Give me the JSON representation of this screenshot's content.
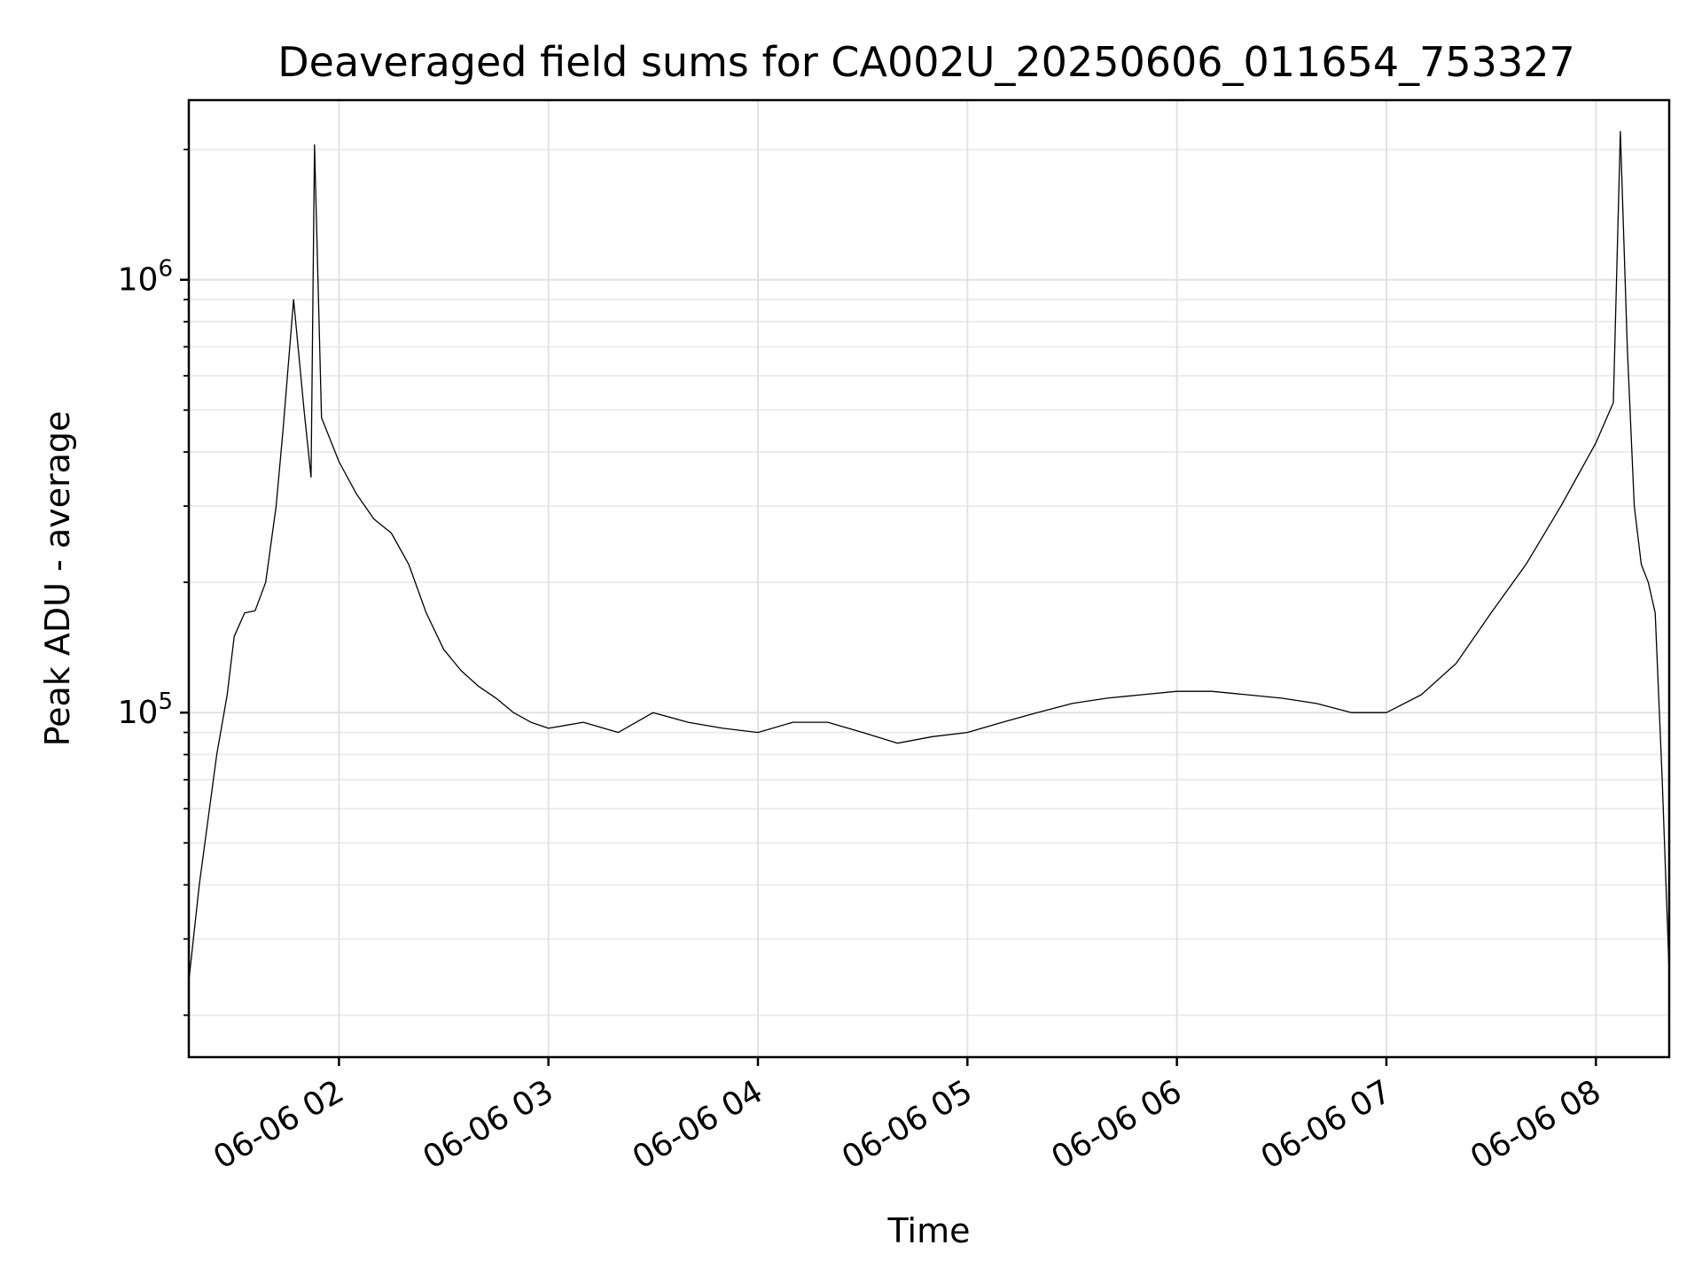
{
  "chart_data": {
    "type": "line",
    "title": "Deaveraged field sums for CA002U_20250606_011654_753327",
    "xlabel": "Time",
    "ylabel": "Peak ADU - average",
    "xscale": "time",
    "yscale": "log",
    "xlim": [
      "2025-06-06 01:17",
      "2025-06-06 08:21"
    ],
    "ylim": [
      16000,
      2600000
    ],
    "grid": true,
    "x_ticks": [
      "06-06 02",
      "06-06 03",
      "06-06 04",
      "06-06 05",
      "06-06 06",
      "06-06 07",
      "06-06 08"
    ],
    "y_ticks": [
      {
        "value": 100000,
        "base": "10",
        "exp": "5"
      },
      {
        "value": 1000000,
        "base": "10",
        "exp": "6"
      }
    ],
    "series": [
      {
        "color": "#000000",
        "points": [
          [
            "01:17",
            24000
          ],
          [
            "01:20",
            40000
          ],
          [
            "01:25",
            80000
          ],
          [
            "01:28",
            110000
          ],
          [
            "01:30",
            150000
          ],
          [
            "01:33",
            170000
          ],
          [
            "01:36",
            172000
          ],
          [
            "01:39",
            200000
          ],
          [
            "01:42",
            300000
          ],
          [
            "01:44",
            450000
          ],
          [
            "01:47",
            900000
          ],
          [
            "01:50",
            500000
          ],
          [
            "01:52",
            350000
          ],
          [
            "01:53",
            2050000
          ],
          [
            "01:55",
            480000
          ],
          [
            "02:00",
            380000
          ],
          [
            "02:05",
            320000
          ],
          [
            "02:10",
            280000
          ],
          [
            "02:15",
            260000
          ],
          [
            "02:20",
            220000
          ],
          [
            "02:25",
            170000
          ],
          [
            "02:30",
            140000
          ],
          [
            "02:35",
            125000
          ],
          [
            "02:40",
            115000
          ],
          [
            "02:45",
            108000
          ],
          [
            "02:50",
            100000
          ],
          [
            "02:55",
            95000
          ],
          [
            "03:00",
            92000
          ],
          [
            "03:10",
            95000
          ],
          [
            "03:20",
            90000
          ],
          [
            "03:30",
            100000
          ],
          [
            "03:40",
            95000
          ],
          [
            "03:50",
            92000
          ],
          [
            "04:00",
            90000
          ],
          [
            "04:10",
            95000
          ],
          [
            "04:20",
            95000
          ],
          [
            "04:30",
            90000
          ],
          [
            "04:40",
            85000
          ],
          [
            "04:50",
            88000
          ],
          [
            "05:00",
            90000
          ],
          [
            "05:10",
            95000
          ],
          [
            "05:20",
            100000
          ],
          [
            "05:30",
            105000
          ],
          [
            "05:40",
            108000
          ],
          [
            "05:50",
            110000
          ],
          [
            "06:00",
            112000
          ],
          [
            "06:10",
            112000
          ],
          [
            "06:20",
            110000
          ],
          [
            "06:30",
            108000
          ],
          [
            "06:40",
            105000
          ],
          [
            "06:50",
            100000
          ],
          [
            "07:00",
            100000
          ],
          [
            "07:10",
            110000
          ],
          [
            "07:20",
            130000
          ],
          [
            "07:30",
            170000
          ],
          [
            "07:40",
            220000
          ],
          [
            "07:50",
            300000
          ],
          [
            "08:00",
            420000
          ],
          [
            "08:05",
            520000
          ],
          [
            "08:07",
            2200000
          ],
          [
            "08:09",
            700000
          ],
          [
            "08:11",
            300000
          ],
          [
            "08:13",
            220000
          ],
          [
            "08:15",
            200000
          ],
          [
            "08:17",
            170000
          ],
          [
            "08:19",
            70000
          ],
          [
            "08:21",
            25000
          ]
        ]
      }
    ]
  }
}
